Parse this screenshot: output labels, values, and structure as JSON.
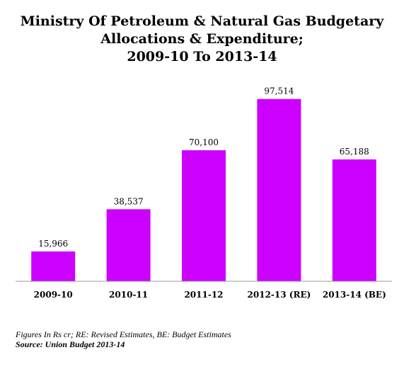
{
  "chart_data": {
    "type": "bar",
    "title_lines": [
      "Ministry Of Petroleum & Natural Gas Budgetary",
      "Allocations & Expenditure;",
      "2009-10 To 2013-14"
    ],
    "categories": [
      "2009-10",
      "2010-11",
      "2011-12",
      "2012-13 (RE)",
      "2013-14 (BE)"
    ],
    "values": [
      15966,
      38537,
      70100,
      97514,
      65188
    ],
    "value_labels": [
      "15,966",
      "38,537",
      "70,100",
      "97,514",
      "65,188"
    ],
    "xlabel": "",
    "ylabel": "",
    "ylim": [
      0,
      105000
    ],
    "grid": false,
    "legend": "none",
    "bar_color": "#cc00ff"
  },
  "footnote": "Figures In Rs cr; RE: Revised Estimates, BE: Budget Estimates",
  "source": "Source: Union Budget 2013-14"
}
